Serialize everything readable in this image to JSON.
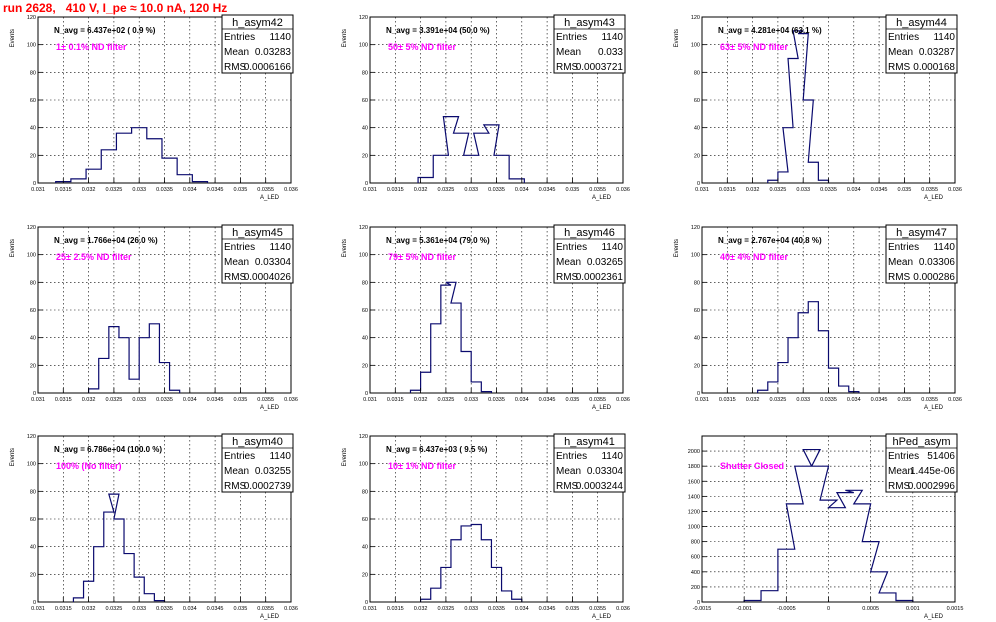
{
  "page": {
    "title": "run 2628,   410 V, I_pe ≈ 10.0 nA, 120 Hz"
  },
  "chart_data": [
    {
      "type": "bar",
      "name": "h_asym42",
      "navg": "N_avg = 6.437e+02 ( 0.9 %)",
      "note": "1± 0.1% ND filter",
      "stats": {
        "entries": "1140",
        "mean": "0.03283",
        "rms": "0.0006166"
      },
      "stat_labels": {
        "entries": "Entries",
        "mean": "Mean",
        "rms": "RMS"
      },
      "xlabel": "A_LED",
      "ylabel": "Events",
      "xlim": [
        0.031,
        0.036
      ],
      "ylim": [
        0,
        120
      ],
      "xticks": [
        "0.031",
        "0.0315",
        "0.032",
        "0.0325",
        "0.033",
        "0.0335",
        "0.034",
        "0.0345",
        "0.035",
        "0.0355",
        "0.036"
      ],
      "yticks": [
        "0",
        "20",
        "40",
        "60",
        "80",
        "100",
        "120"
      ],
      "x": [
        0.0315,
        0.0318,
        0.0321,
        0.0324,
        0.0327,
        0.033,
        0.0333,
        0.0336,
        0.0339,
        0.0342
      ],
      "values": [
        1,
        3,
        10,
        24,
        36,
        40,
        32,
        18,
        6,
        1
      ]
    },
    {
      "type": "bar",
      "name": "h_asym43",
      "navg": "N_avg = 3.391e+04 (50.0 %)",
      "note": "50± 5% ND filter",
      "stats": {
        "entries": "1140",
        "mean": "0.033",
        "rms": "0.0003721"
      },
      "stat_labels": {
        "entries": "Entries",
        "mean": "Mean",
        "rms": "RMS"
      },
      "xlabel": "A_LED",
      "ylabel": "Events",
      "xlim": [
        0.031,
        0.036
      ],
      "ylim": [
        0,
        120
      ],
      "xticks": [
        "0.031",
        "0.0315",
        "0.032",
        "0.0325",
        "0.033",
        "0.0335",
        "0.034",
        "0.0345",
        "0.035",
        "0.0355",
        "0.036"
      ],
      "yticks": [
        "0",
        "20",
        "40",
        "60",
        "80",
        "100",
        "120"
      ],
      "x": [
        0.0321,
        0.0324,
        0.0326,
        0.0328,
        0.033,
        0.0332,
        0.0334,
        0.0336,
        0.0339
      ],
      "values": [
        4,
        20,
        48,
        36,
        20,
        36,
        42,
        20,
        3
      ]
    },
    {
      "type": "bar",
      "name": "h_asym44",
      "navg": "N_avg = 4.281e+04 (63.1 %)",
      "note": "63± 5% ND filter",
      "stats": {
        "entries": "1140",
        "mean": "0.03287",
        "rms": "0.000168"
      },
      "stat_labels": {
        "entries": "Entries",
        "mean": "Mean",
        "rms": "RMS"
      },
      "xlabel": "A_LED",
      "ylabel": "Events",
      "xlim": [
        0.031,
        0.036
      ],
      "ylim": [
        0,
        120
      ],
      "xticks": [
        "0.031",
        "0.0315",
        "0.032",
        "0.0325",
        "0.033",
        "0.0335",
        "0.034",
        "0.0345",
        "0.035",
        "0.0355",
        "0.036"
      ],
      "yticks": [
        "0",
        "20",
        "40",
        "60",
        "80",
        "100",
        "120"
      ],
      "x": [
        0.0324,
        0.0326,
        0.0327,
        0.0328,
        0.0329,
        0.033,
        0.0331,
        0.0332,
        0.0334
      ],
      "values": [
        2,
        8,
        40,
        90,
        110,
        108,
        60,
        15,
        2
      ]
    },
    {
      "type": "bar",
      "name": "h_asym45",
      "navg": "N_avg = 1.766e+04 (26.0 %)",
      "note": "25± 2.5% ND filter",
      "stats": {
        "entries": "1140",
        "mean": "0.03304",
        "rms": "0.0004026"
      },
      "stat_labels": {
        "entries": "Entries",
        "mean": "Mean",
        "rms": "RMS"
      },
      "xlabel": "A_LED",
      "ylabel": "Events",
      "xlim": [
        0.031,
        0.036
      ],
      "ylim": [
        0,
        120
      ],
      "xticks": [
        "0.031",
        "0.0315",
        "0.032",
        "0.0325",
        "0.033",
        "0.0335",
        "0.034",
        "0.0345",
        "0.035",
        "0.0355",
        "0.036"
      ],
      "yticks": [
        "0",
        "20",
        "40",
        "60",
        "80",
        "100",
        "120"
      ],
      "x": [
        0.0321,
        0.0323,
        0.0325,
        0.0327,
        0.0329,
        0.0331,
        0.0333,
        0.0335,
        0.0337
      ],
      "values": [
        3,
        25,
        48,
        40,
        10,
        40,
        50,
        22,
        2
      ]
    },
    {
      "type": "bar",
      "name": "h_asym46",
      "navg": "N_avg = 5.361e+04 (79.0 %)",
      "note": "79± 5% ND filter",
      "stats": {
        "entries": "1140",
        "mean": "0.03265",
        "rms": "0.0002361"
      },
      "stat_labels": {
        "entries": "Entries",
        "mean": "Mean",
        "rms": "RMS"
      },
      "xlabel": "A_LED",
      "ylabel": "Events",
      "xlim": [
        0.031,
        0.036
      ],
      "ylim": [
        0,
        120
      ],
      "xticks": [
        "0.031",
        "0.0315",
        "0.032",
        "0.0325",
        "0.033",
        "0.0335",
        "0.034",
        "0.0345",
        "0.035",
        "0.0355",
        "0.036"
      ],
      "yticks": [
        "0",
        "20",
        "40",
        "60",
        "80",
        "100",
        "120"
      ],
      "x": [
        0.0319,
        0.0321,
        0.0323,
        0.0325,
        0.0326,
        0.0327,
        0.0329,
        0.0331,
        0.0333
      ],
      "values": [
        2,
        15,
        50,
        78,
        80,
        65,
        30,
        8,
        1
      ]
    },
    {
      "type": "bar",
      "name": "h_asym47",
      "navg": "N_avg = 2.767e+04 (40.8 %)",
      "note": "40± 4% ND filter",
      "stats": {
        "entries": "1140",
        "mean": "0.03306",
        "rms": "0.000286"
      },
      "stat_labels": {
        "entries": "Entries",
        "mean": "Mean",
        "rms": "RMS"
      },
      "xlabel": "A_LED",
      "ylabel": "Events",
      "xlim": [
        0.031,
        0.036
      ],
      "ylim": [
        0,
        120
      ],
      "xticks": [
        "0.031",
        "0.0315",
        "0.032",
        "0.0325",
        "0.033",
        "0.0335",
        "0.034",
        "0.0345",
        "0.035",
        "0.0355",
        "0.036"
      ],
      "yticks": [
        "0",
        "20",
        "40",
        "60",
        "80",
        "100",
        "120"
      ],
      "x": [
        0.0322,
        0.0324,
        0.0326,
        0.0328,
        0.033,
        0.0332,
        0.0334,
        0.0336,
        0.0338,
        0.034
      ],
      "values": [
        2,
        8,
        22,
        40,
        58,
        66,
        45,
        18,
        5,
        1
      ]
    },
    {
      "type": "bar",
      "name": "h_asym40",
      "navg": "N_avg = 6.786e+04 (100.0 %)",
      "note": "100% (No filter)",
      "stats": {
        "entries": "1140",
        "mean": "0.03255",
        "rms": "0.0002739"
      },
      "stat_labels": {
        "entries": "Entries",
        "mean": "Mean",
        "rms": "RMS"
      },
      "xlabel": "A_LED",
      "ylabel": "Events",
      "xlim": [
        0.031,
        0.036
      ],
      "ylim": [
        0,
        120
      ],
      "xticks": [
        "0.031",
        "0.0315",
        "0.032",
        "0.0325",
        "0.033",
        "0.0335",
        "0.034",
        "0.0345",
        "0.035",
        "0.0355",
        "0.036"
      ],
      "yticks": [
        "0",
        "20",
        "40",
        "60",
        "80",
        "100",
        "120"
      ],
      "x": [
        0.0318,
        0.032,
        0.0322,
        0.0324,
        0.0325,
        0.0326,
        0.0328,
        0.033,
        0.0332,
        0.0334
      ],
      "values": [
        3,
        15,
        40,
        65,
        78,
        60,
        35,
        18,
        6,
        1
      ]
    },
    {
      "type": "bar",
      "name": "h_asym41",
      "navg": "N_avg = 6.437e+03 ( 9.5 %)",
      "note": "10± 1% ND filter",
      "stats": {
        "entries": "1140",
        "mean": "0.03304",
        "rms": "0.0003244"
      },
      "stat_labels": {
        "entries": "Entries",
        "mean": "Mean",
        "rms": "RMS"
      },
      "xlabel": "A_LED",
      "ylabel": "Events",
      "xlim": [
        0.031,
        0.036
      ],
      "ylim": [
        0,
        120
      ],
      "xticks": [
        "0.031",
        "0.0315",
        "0.032",
        "0.0325",
        "0.033",
        "0.0335",
        "0.034",
        "0.0345",
        "0.035",
        "0.0355",
        "0.036"
      ],
      "yticks": [
        "0",
        "20",
        "40",
        "60",
        "80",
        "100",
        "120"
      ],
      "x": [
        0.0321,
        0.0323,
        0.0325,
        0.0327,
        0.0329,
        0.0331,
        0.0333,
        0.0335,
        0.0337,
        0.0339
      ],
      "values": [
        2,
        10,
        25,
        45,
        55,
        56,
        45,
        25,
        8,
        2
      ]
    },
    {
      "type": "bar",
      "name": "hPed_asym",
      "navg": "",
      "note": "Shutter Closed",
      "stats": {
        "entries": "51406",
        "mean": "1.445e-06",
        "rms": "0.0002996"
      },
      "stat_labels": {
        "entries": "Entries",
        "mean": "Mean",
        "rms": "RMS"
      },
      "xlabel": "A_LED",
      "ylabel": "",
      "xlim": [
        -0.0015,
        0.0015
      ],
      "ylim": [
        0,
        2200
      ],
      "xticks": [
        "-0.0015",
        "-0.001",
        "-0.0005",
        "0",
        "0.0005",
        "0.001",
        "0.0015"
      ],
      "yticks": [
        "0",
        "200",
        "400",
        "600",
        "800",
        "1000",
        "1200",
        "1400",
        "1600",
        "1800",
        "2000"
      ],
      "x": [
        -0.0009,
        -0.0007,
        -0.0005,
        -0.0004,
        -0.0003,
        -0.0002,
        -0.0001,
        0.0,
        0.0001,
        0.0002,
        0.0003,
        0.0004,
        0.0005,
        0.0006,
        0.0007,
        0.0009
      ],
      "values": [
        20,
        150,
        700,
        1300,
        1800,
        2020,
        1800,
        1350,
        1250,
        1450,
        1480,
        1300,
        800,
        400,
        120,
        20
      ]
    }
  ]
}
